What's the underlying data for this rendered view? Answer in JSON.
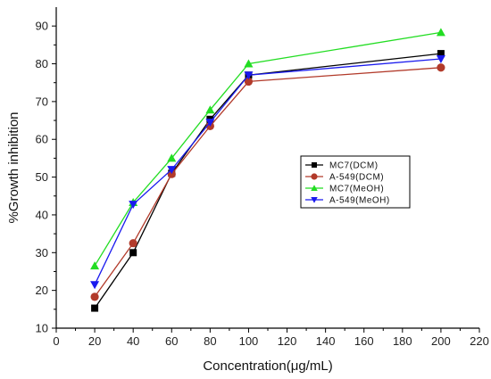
{
  "chart_data": {
    "type": "line",
    "xlabel": "Concentration(μg/mL)",
    "ylabel": "%Growth inhibition",
    "xlim": [
      0,
      220
    ],
    "ylim": [
      10,
      95
    ],
    "x_ticks": [
      0,
      20,
      40,
      60,
      80,
      100,
      120,
      140,
      160,
      180,
      200,
      220
    ],
    "y_ticks": [
      10,
      20,
      30,
      40,
      50,
      60,
      70,
      80,
      90
    ],
    "grid": false,
    "legend_position": "center-right",
    "x": [
      20,
      40,
      60,
      80,
      100,
      200
    ],
    "series": [
      {
        "name": "MC7(DCM)",
        "color": "#000000",
        "marker": "square",
        "values": [
          15.3,
          30.0,
          51.0,
          65.3,
          77.0,
          82.7
        ]
      },
      {
        "name": "A-549(DCM)",
        "color": "#b23a2a",
        "marker": "circle",
        "values": [
          18.3,
          32.5,
          50.8,
          63.5,
          75.3,
          79.0
        ]
      },
      {
        "name": "MC7(MeOH)",
        "color": "#22dd22",
        "marker": "triangle-up",
        "values": [
          26.5,
          43.3,
          55.0,
          67.8,
          80.0,
          88.3
        ]
      },
      {
        "name": "A-549(MeOH)",
        "color": "#1a1aee",
        "marker": "triangle-down",
        "values": [
          21.5,
          42.8,
          52.0,
          64.5,
          77.0,
          81.3
        ]
      }
    ]
  }
}
